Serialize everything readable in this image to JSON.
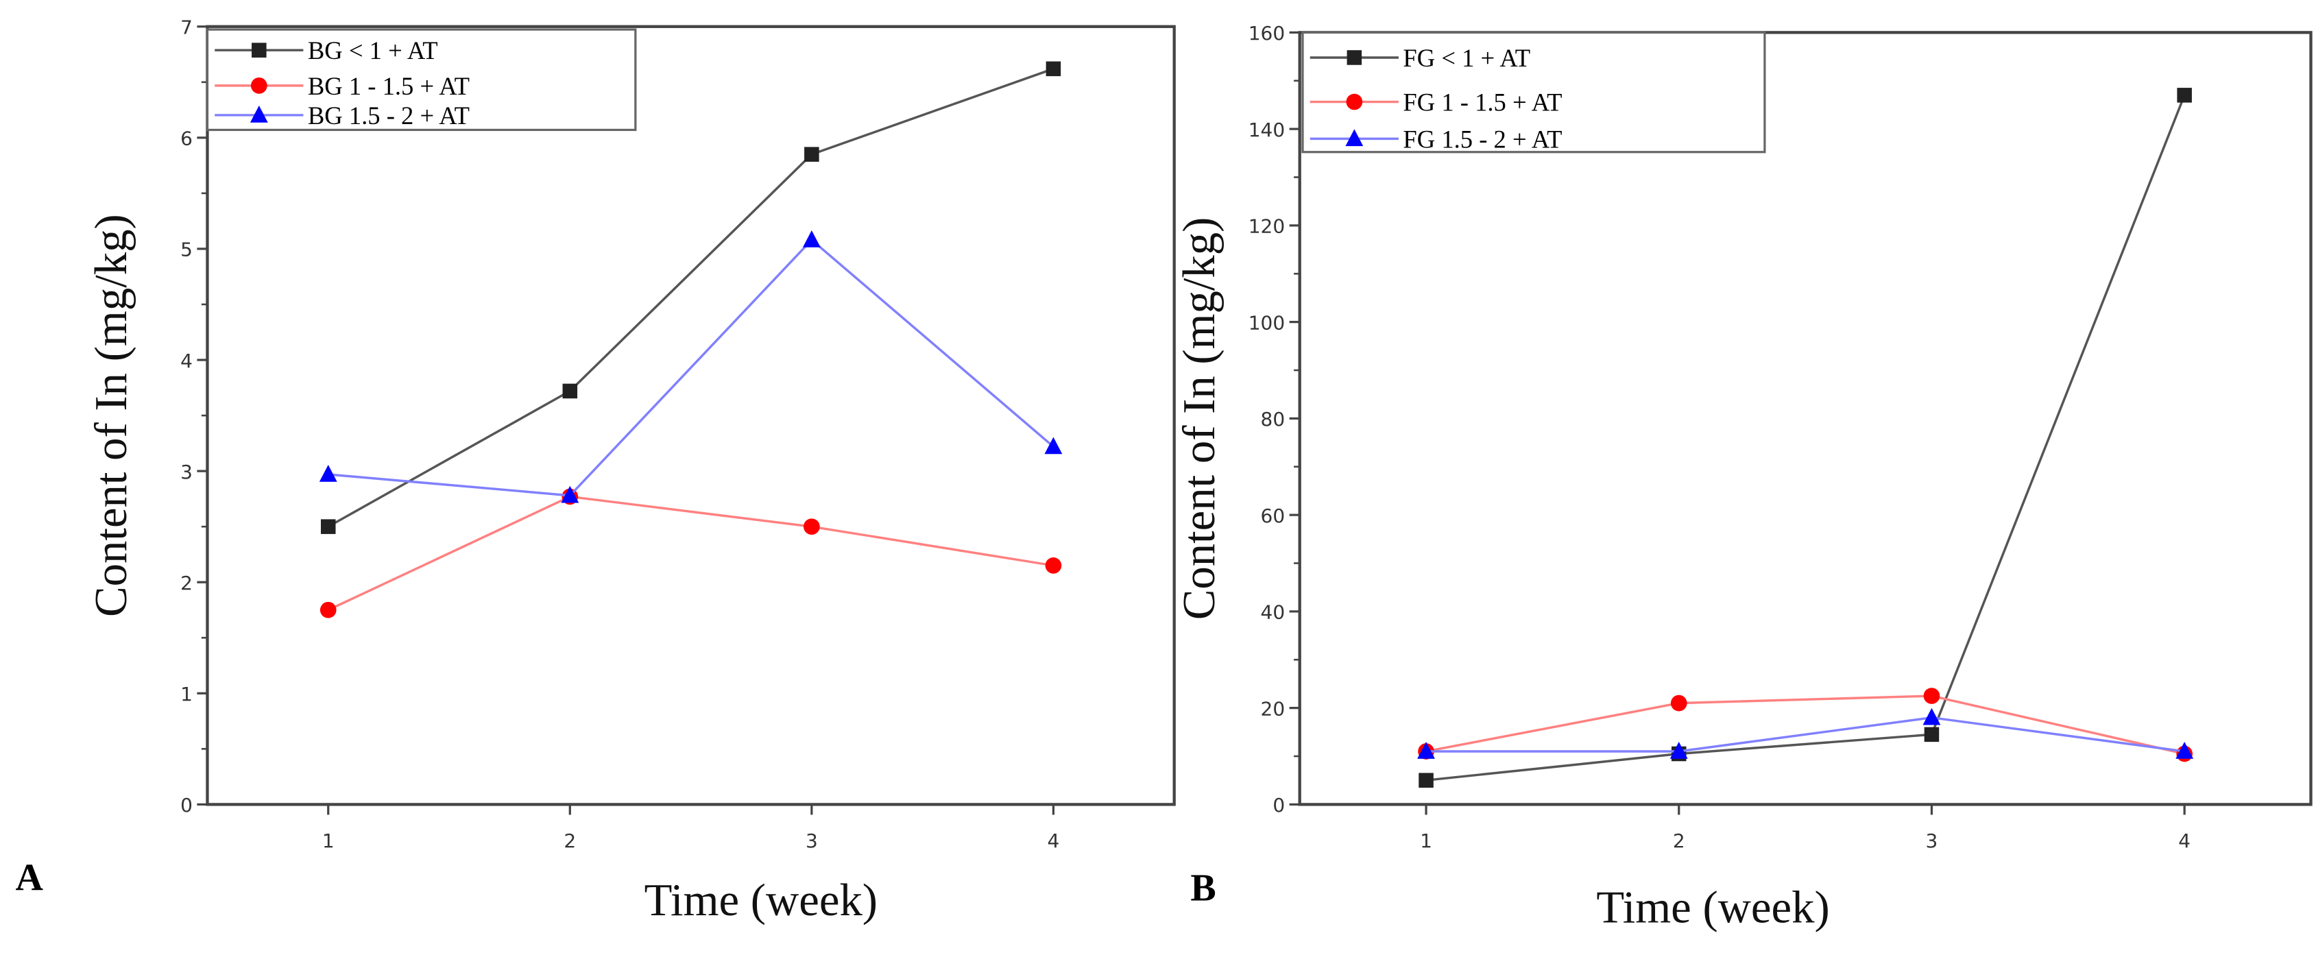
{
  "chart_data": [
    {
      "type": "line",
      "panel_label": "A",
      "xlabel": "Time (week)",
      "ylabel": "Content of In (mg/kg)",
      "x": [
        1,
        2,
        3,
        4
      ],
      "xlim": [
        0.5,
        4.5
      ],
      "ylim": [
        0,
        7
      ],
      "yticks": [
        0,
        1,
        2,
        3,
        4,
        5,
        6,
        7
      ],
      "xticks": [
        1,
        2,
        3,
        4
      ],
      "grid": false,
      "legend_position": "top-left",
      "series": [
        {
          "name": "BG < 1      + AT",
          "color": "#222222",
          "line_color": "#555555",
          "marker": "square",
          "values": [
            2.5,
            3.72,
            5.85,
            6.62
          ]
        },
        {
          "name": "BG 1 - 1.5 + AT",
          "color": "#ff0000",
          "line_color": "#ff8080",
          "marker": "circle",
          "values": [
            1.75,
            2.77,
            2.5,
            2.15
          ]
        },
        {
          "name": "BG 1.5 - 2 + AT",
          "color": "#0000ff",
          "line_color": "#8080ff",
          "marker": "triangle",
          "values": [
            2.97,
            2.78,
            5.08,
            3.22
          ]
        }
      ]
    },
    {
      "type": "line",
      "panel_label": "B",
      "xlabel": "Time (week)",
      "ylabel": "Content of In (mg/kg)",
      "x": [
        1,
        2,
        3,
        4
      ],
      "xlim": [
        0.5,
        4.5
      ],
      "ylim": [
        0,
        160
      ],
      "yticks": [
        0,
        20,
        40,
        60,
        80,
        100,
        120,
        140,
        160
      ],
      "xticks": [
        1,
        2,
        3,
        4
      ],
      "grid": false,
      "legend_position": "top-left",
      "series": [
        {
          "name": "FG < 1      + AT",
          "color": "#222222",
          "line_color": "#555555",
          "marker": "square",
          "values": [
            5,
            10.5,
            14.5,
            147
          ]
        },
        {
          "name": "FG 1 - 1.5 + AT",
          "color": "#ff0000",
          "line_color": "#ff8080",
          "marker": "circle",
          "values": [
            11,
            21,
            22.5,
            10.5
          ]
        },
        {
          "name": "FG 1.5 - 2 + AT",
          "color": "#0000ff",
          "line_color": "#8080ff",
          "marker": "triangle",
          "values": [
            11,
            11,
            18,
            11
          ]
        }
      ]
    }
  ]
}
